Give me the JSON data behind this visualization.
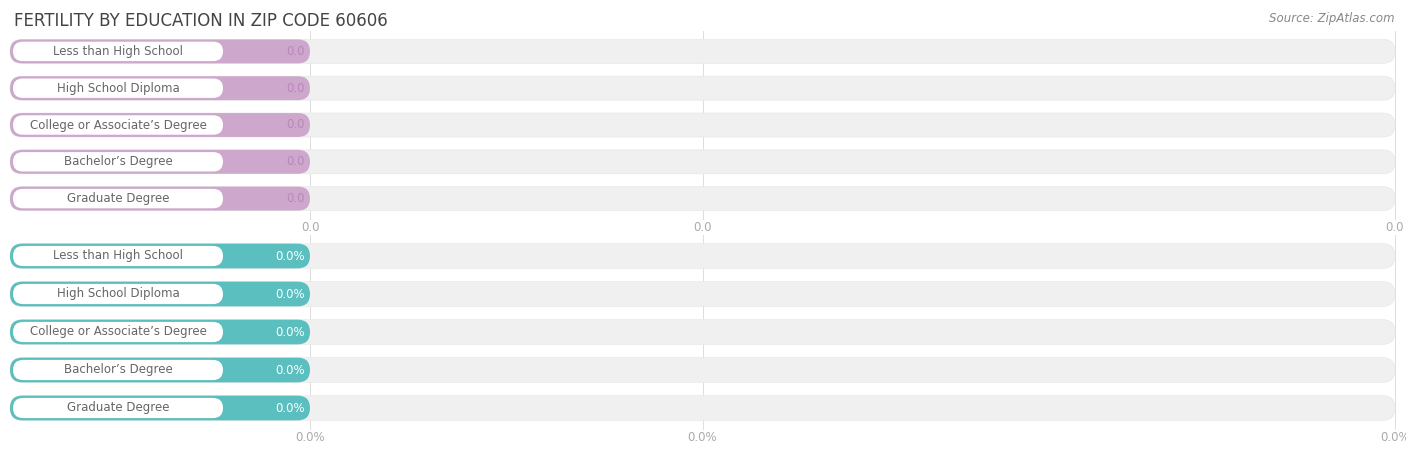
{
  "title": "FERTILITY BY EDUCATION IN ZIP CODE 60606",
  "source": "Source: ZipAtlas.com",
  "categories": [
    "Less than High School",
    "High School Diploma",
    "College or Associate’s Degree",
    "Bachelor’s Degree",
    "Graduate Degree"
  ],
  "values_top": [
    0.0,
    0.0,
    0.0,
    0.0,
    0.0
  ],
  "values_bottom": [
    0.0,
    0.0,
    0.0,
    0.0,
    0.0
  ],
  "bar_color_top": "#cda8cc",
  "bar_color_bottom": "#5bbfbf",
  "bg_color": "#ffffff",
  "bar_bg_color": "#f0f0f0",
  "bar_bg_edge": "#e8e8e8",
  "title_fontsize": 12,
  "label_fontsize": 8.5,
  "value_fontsize": 8.5,
  "tick_fontsize": 8.5,
  "source_fontsize": 8.5,
  "text_color": "#666666",
  "title_color": "#444444",
  "source_color": "#888888",
  "tick_color": "#aaaaaa",
  "value_color_top": "#b888b8",
  "value_color_bottom": "#ffffff",
  "tick_label_top": "0.0",
  "tick_label_bottom": "0.0%"
}
